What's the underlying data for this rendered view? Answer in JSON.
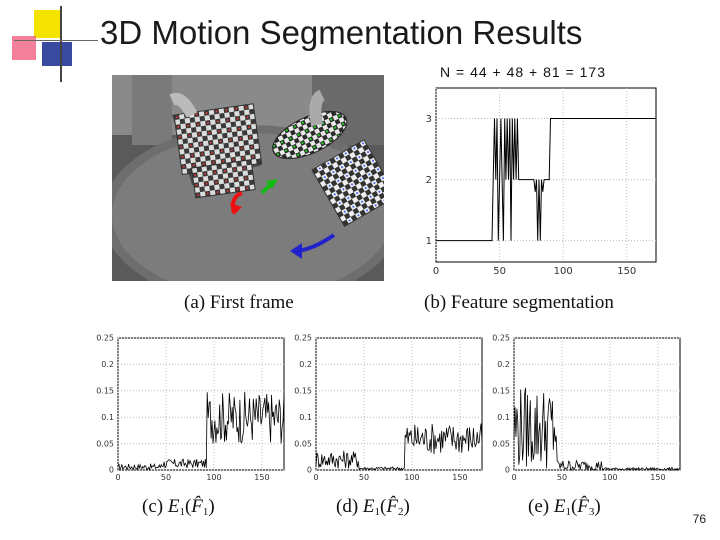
{
  "slide": {
    "title": "3D Motion Segmentation Results",
    "page_number": "76",
    "n_label": "N = 44 + 48 + 81 = 173",
    "captions": {
      "a": "(a) First frame",
      "b": "(b) Feature segmentation",
      "c_prefix": "(c) ",
      "d_prefix": "(d) ",
      "e_prefix": "(e) ",
      "c_sub": "1",
      "d_sub": "2",
      "e_sub": "3"
    }
  },
  "chart_data": [
    {
      "type": "line",
      "id": "b",
      "x_ticks": [
        "0",
        "50",
        "100",
        "150"
      ],
      "y_ticks": [
        "1",
        "2",
        "3"
      ],
      "xlim": [
        0,
        173
      ],
      "ylim": [
        0.65,
        3.5
      ],
      "x": [
        0,
        44,
        45,
        46,
        47,
        48,
        49,
        50,
        51,
        52,
        53,
        54,
        55,
        56,
        57,
        58,
        59,
        60,
        61,
        62,
        63,
        64,
        65,
        66,
        67,
        68,
        69,
        70,
        71,
        72,
        73,
        74,
        75,
        76,
        77,
        78,
        79,
        80,
        81,
        82,
        83,
        84,
        85,
        86,
        87,
        88,
        89,
        90,
        91,
        92,
        173
      ],
      "values": [
        1,
        1,
        2,
        3,
        2,
        3,
        1,
        2,
        3,
        2,
        1,
        3,
        2,
        3,
        2,
        3,
        1,
        3,
        2,
        3,
        2,
        3,
        2,
        2,
        2,
        2,
        2,
        2,
        2,
        2,
        2,
        2,
        2,
        2,
        2,
        1.8,
        2,
        1,
        2,
        1,
        2,
        1.8,
        2,
        2,
        2,
        2,
        2,
        3,
        3,
        3,
        3
      ]
    },
    {
      "type": "line",
      "id": "c",
      "x_ticks": [
        "0",
        "50",
        "100",
        "150"
      ],
      "y_ticks": [
        "0",
        "0.05",
        "0.1",
        "0.15",
        "0.2",
        "0.25"
      ],
      "xlim": [
        0,
        173
      ],
      "ylim": [
        0,
        0.25
      ],
      "segments": [
        {
          "from": 0,
          "to": 44,
          "base": 0.006,
          "amp": 0.012
        },
        {
          "from": 45,
          "to": 92,
          "base": 0.012,
          "amp": 0.018
        },
        {
          "from": 93,
          "to": 173,
          "base": 0.1,
          "amp": 0.1
        }
      ]
    },
    {
      "type": "line",
      "id": "d",
      "x_ticks": [
        "0",
        "50",
        "100",
        "150"
      ],
      "y_ticks": [
        "0",
        "0.05",
        "0.1",
        "0.15",
        "0.2",
        "0.25"
      ],
      "xlim": [
        0,
        173
      ],
      "ylim": [
        0,
        0.25
      ],
      "segments": [
        {
          "from": 0,
          "to": 44,
          "base": 0.02,
          "amp": 0.035
        },
        {
          "from": 45,
          "to": 92,
          "base": 0.003,
          "amp": 0.006
        },
        {
          "from": 93,
          "to": 173,
          "base": 0.06,
          "amp": 0.06
        }
      ]
    },
    {
      "type": "line",
      "id": "e",
      "x_ticks": [
        "0",
        "50",
        "100",
        "150"
      ],
      "y_ticks": [
        "0",
        "0.05",
        "0.1",
        "0.15",
        "0.2",
        "0.25"
      ],
      "xlim": [
        0,
        173
      ],
      "ylim": [
        0,
        0.25
      ],
      "segments": [
        {
          "from": 0,
          "to": 44,
          "base": 0.08,
          "amp": 0.16
        },
        {
          "from": 45,
          "to": 92,
          "base": 0.008,
          "amp": 0.022
        },
        {
          "from": 93,
          "to": 173,
          "base": 0.002,
          "amp": 0.005
        }
      ]
    }
  ]
}
